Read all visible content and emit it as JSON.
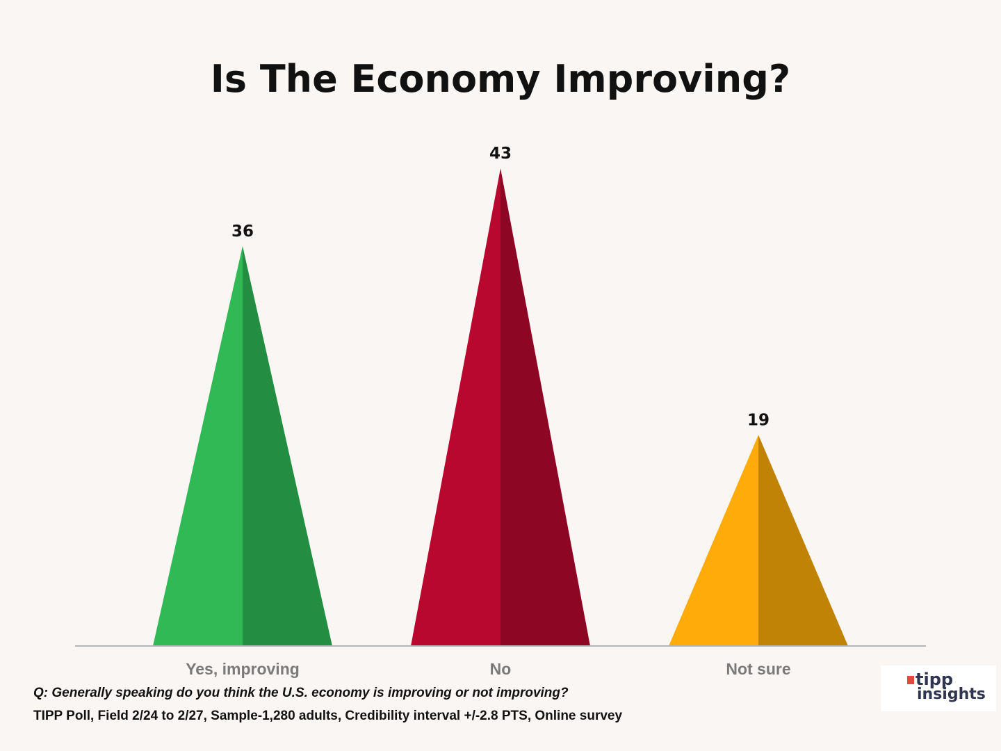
{
  "chart_data": {
    "type": "bar",
    "title": "Is The Economy Improving?",
    "categories": [
      "Yes, improving",
      "No",
      "Not sure"
    ],
    "values": [
      36,
      43,
      19
    ],
    "colors": [
      [
        "#31b955",
        "#238e41"
      ],
      [
        "#b90830",
        "#8d0624"
      ],
      [
        "#ffab0a",
        "#c08306"
      ]
    ],
    "bar_shape": "triangle",
    "grid": false,
    "ylim": [
      0,
      43
    ]
  },
  "footer": {
    "question": "Q:  Generally speaking do you think the U.S. economy is improving or not improving?",
    "source": "TIPP Poll, Field 2/24 to 2/27, Sample-1,280 adults, Credibility interval +/-2.8 PTS, Online survey"
  },
  "logo": {
    "line1": "tipp",
    "line2": "insights"
  }
}
